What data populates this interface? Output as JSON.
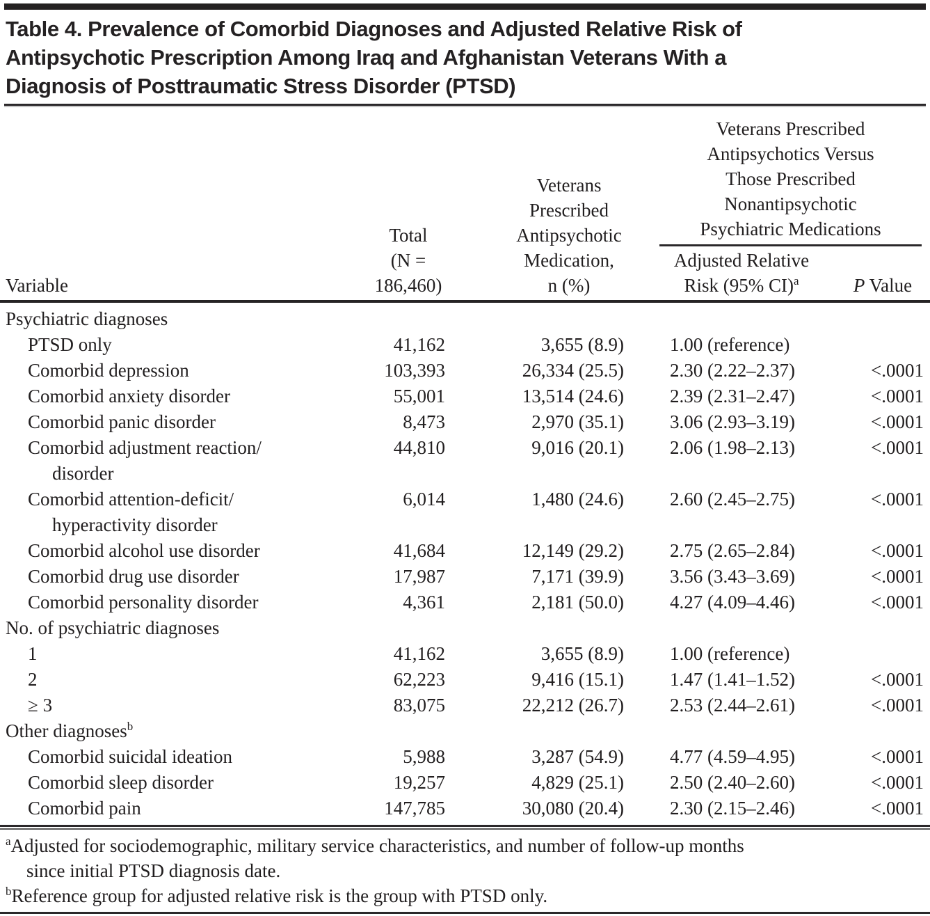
{
  "table": {
    "title": "Table 4. Prevalence of Comorbid Diagnoses and Adjusted Relative Risk of\nAntipsychotic Prescription Among Iraq and Afghanistan Veterans With a\nDiagnosis of Posttraumatic Stress Disorder (PTSD)",
    "columns": {
      "variable": "Variable",
      "total": "Total\n(N = 186,460)",
      "antipsychotic_med": "Veterans\nPrescribed\nAntipsychotic\nMedication,\nn (%)",
      "spanner": "Veterans Prescribed\nAntipsychotics Versus\nThose Prescribed\nNonantipsychotic\nPsychiatric Medications",
      "arr_line1": "Adjusted Relative",
      "arr_line2": "Risk (95% CI)",
      "arr_sup": "a",
      "p_italic": "P",
      "p_rest": " Value"
    },
    "rows": [
      {
        "type": "section",
        "label": "Psychiatric diagnoses",
        "sup": ""
      },
      {
        "type": "item",
        "label": "PTSD only",
        "total": "41,162",
        "n_pct": "3,655 (8.9)",
        "arr": "1.00 (reference)",
        "p": ""
      },
      {
        "type": "item",
        "label": "Comorbid depression",
        "total": "103,393",
        "n_pct": "26,334 (25.5)",
        "arr": "2.30 (2.22–2.37)",
        "p": "<.0001"
      },
      {
        "type": "item",
        "label": "Comorbid anxiety disorder",
        "total": "55,001",
        "n_pct": "13,514 (24.6)",
        "arr": "2.39 (2.31–2.47)",
        "p": "<.0001"
      },
      {
        "type": "item",
        "label": "Comorbid panic disorder",
        "total": "8,473",
        "n_pct": "2,970 (35.1)",
        "arr": "3.06 (2.93–3.19)",
        "p": "<.0001"
      },
      {
        "type": "item",
        "label": "Comorbid adjustment reaction/\ndisorder",
        "total": "44,810",
        "n_pct": "9,016 (20.1)",
        "arr": "2.06 (1.98–2.13)",
        "p": "<.0001"
      },
      {
        "type": "item",
        "label": "Comorbid attention-deficit/\nhyperactivity disorder",
        "total": "6,014",
        "n_pct": "1,480 (24.6)",
        "arr": "2.60 (2.45–2.75)",
        "p": "<.0001"
      },
      {
        "type": "item",
        "label": "Comorbid alcohol use disorder",
        "total": "41,684",
        "n_pct": "12,149 (29.2)",
        "arr": "2.75 (2.65–2.84)",
        "p": "<.0001"
      },
      {
        "type": "item",
        "label": "Comorbid drug use disorder",
        "total": "17,987",
        "n_pct": "7,171 (39.9)",
        "arr": "3.56 (3.43–3.69)",
        "p": "<.0001"
      },
      {
        "type": "item",
        "label": "Comorbid personality disorder",
        "total": "4,361",
        "n_pct": "2,181 (50.0)",
        "arr": "4.27 (4.09–4.46)",
        "p": "<.0001"
      },
      {
        "type": "section",
        "label": "No. of psychiatric diagnoses",
        "sup": ""
      },
      {
        "type": "item",
        "label": "1",
        "total": "41,162",
        "n_pct": "3,655 (8.9)",
        "arr": "1.00 (reference)",
        "p": ""
      },
      {
        "type": "item",
        "label": "2",
        "total": "62,223",
        "n_pct": "9,416 (15.1)",
        "arr": "1.47 (1.41–1.52)",
        "p": "<.0001"
      },
      {
        "type": "item",
        "label": "≥ 3",
        "total": "83,075",
        "n_pct": "22,212 (26.7)",
        "arr": "2.53 (2.44–2.61)",
        "p": "<.0001"
      },
      {
        "type": "section",
        "label": "Other diagnoses",
        "sup": "b"
      },
      {
        "type": "item",
        "label": "Comorbid suicidal ideation",
        "total": "5,988",
        "n_pct": "3,287 (54.9)",
        "arr": "4.77 (4.59–4.95)",
        "p": "<.0001"
      },
      {
        "type": "item",
        "label": "Comorbid sleep disorder",
        "total": "19,257",
        "n_pct": "4,829 (25.1)",
        "arr": "2.50 (2.40–2.60)",
        "p": "<.0001"
      },
      {
        "type": "item",
        "label": "Comorbid pain",
        "total": "147,785",
        "n_pct": "30,080 (20.4)",
        "arr": "2.30 (2.15–2.46)",
        "p": "<.0001"
      }
    ],
    "footnotes": [
      {
        "sup": "a",
        "text": "Adjusted for sociodemographic, military service characteristics, and number of follow-up months\nsince initial PTSD diagnosis date."
      },
      {
        "sup": "b",
        "text": "Reference group for adjusted relative risk is the group with PTSD only."
      }
    ]
  }
}
